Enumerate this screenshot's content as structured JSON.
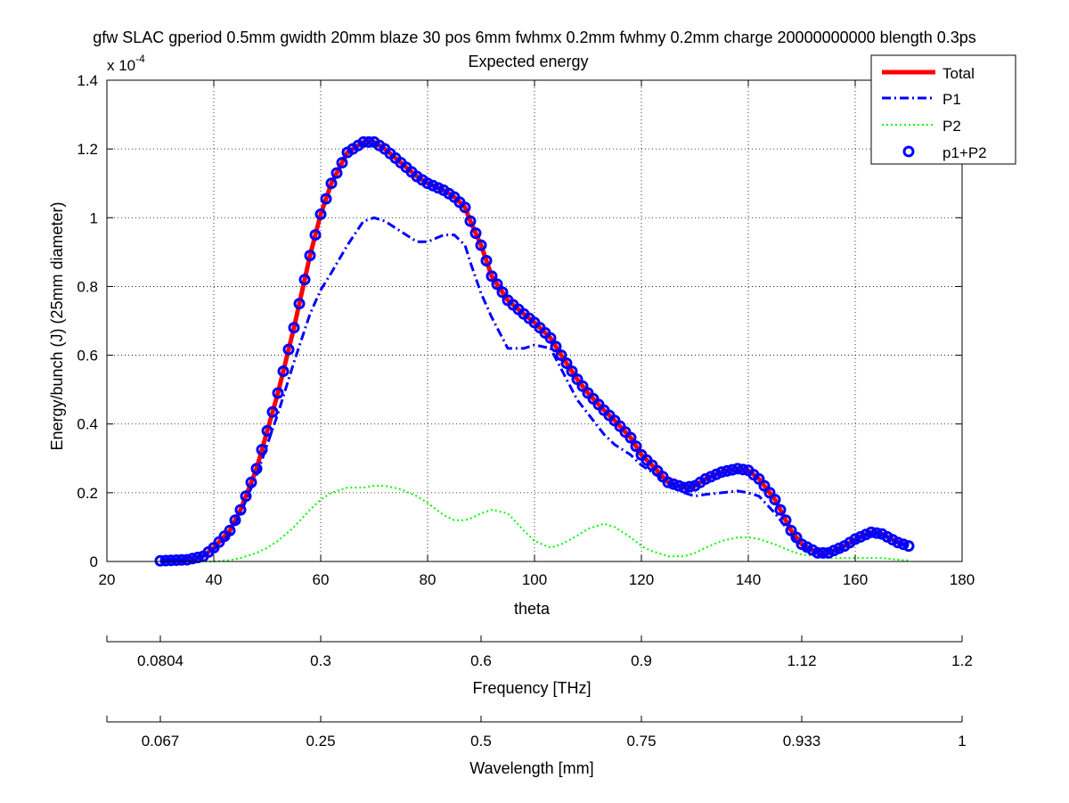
{
  "chart_data": {
    "type": "line",
    "title": "gfw SLAC gperiod 0.5mm gwidth 20mm blaze 30 pos 6mm fwhmx 0.2mm fwhmy 0.2mm charge 20000000000 blength 0.3ps",
    "subtitle": "Expected energy",
    "xlabel": "theta",
    "ylabel": "Energy/bunch (J)  (25mm diameter)",
    "y_exponent_label": "x 10",
    "y_exponent": "-4",
    "xlim": [
      20,
      180
    ],
    "ylim": [
      0,
      1.4
    ],
    "xticks": [
      20,
      40,
      60,
      80,
      100,
      120,
      140,
      160,
      180
    ],
    "xtick_labels": [
      "20",
      "40",
      "60",
      "80",
      "100",
      "120",
      "140",
      "160",
      "180"
    ],
    "yticks": [
      0,
      0.2,
      0.4,
      0.6,
      0.8,
      1,
      1.2,
      1.4
    ],
    "ytick_labels": [
      "0",
      "0.2",
      "0.4",
      "0.6",
      "0.8",
      "1",
      "1.2",
      "1.4"
    ],
    "grid": true,
    "legend_position": "top-right",
    "colors": {
      "total": "#ff0000",
      "p1": "#0000ff",
      "p2": "#00ff00",
      "markers": "#0000ff"
    },
    "series": [
      {
        "name": "Total",
        "style": "solid",
        "color": "#ff0000",
        "x": [
          30,
          35,
          38,
          40,
          43,
          45,
          48,
          50,
          52,
          55,
          58,
          60,
          62,
          65,
          68,
          70,
          72,
          75,
          78,
          80,
          83,
          85,
          87,
          88,
          90,
          92,
          95,
          98,
          100,
          103,
          105,
          108,
          110,
          113,
          115,
          118,
          120,
          122,
          125,
          128,
          130,
          132,
          135,
          138,
          140,
          142,
          145,
          148,
          150,
          153,
          155,
          158,
          160,
          163,
          165,
          168,
          170
        ],
        "y": [
          0.002,
          0.005,
          0.015,
          0.04,
          0.09,
          0.15,
          0.27,
          0.38,
          0.49,
          0.68,
          0.89,
          1.01,
          1.1,
          1.19,
          1.22,
          1.22,
          1.2,
          1.16,
          1.12,
          1.1,
          1.08,
          1.06,
          1.03,
          0.99,
          0.92,
          0.83,
          0.76,
          0.72,
          0.695,
          0.65,
          0.6,
          0.53,
          0.49,
          0.44,
          0.41,
          0.36,
          0.31,
          0.28,
          0.23,
          0.215,
          0.22,
          0.24,
          0.26,
          0.27,
          0.265,
          0.24,
          0.18,
          0.09,
          0.05,
          0.025,
          0.025,
          0.045,
          0.065,
          0.085,
          0.08,
          0.055,
          0.045
        ]
      },
      {
        "name": "P1",
        "style": "dashdot",
        "color": "#0000ff",
        "x": [
          30,
          35,
          38,
          40,
          43,
          45,
          48,
          50,
          52,
          55,
          58,
          60,
          62,
          65,
          68,
          70,
          72,
          75,
          78,
          80,
          83,
          85,
          87,
          88,
          90,
          92,
          95,
          98,
          100,
          103,
          105,
          108,
          110,
          113,
          115,
          118,
          120,
          122,
          125,
          128,
          130,
          132,
          135,
          138,
          140,
          142,
          145,
          148,
          150,
          153,
          155,
          158,
          160,
          163,
          165,
          168,
          170
        ],
        "y": [
          0.002,
          0.005,
          0.015,
          0.035,
          0.08,
          0.14,
          0.25,
          0.34,
          0.43,
          0.58,
          0.72,
          0.79,
          0.84,
          0.92,
          0.99,
          1.0,
          0.99,
          0.96,
          0.93,
          0.93,
          0.95,
          0.95,
          0.92,
          0.87,
          0.78,
          0.71,
          0.62,
          0.62,
          0.63,
          0.62,
          0.56,
          0.47,
          0.43,
          0.37,
          0.34,
          0.31,
          0.28,
          0.26,
          0.23,
          0.2,
          0.19,
          0.195,
          0.2,
          0.205,
          0.2,
          0.19,
          0.14,
          0.08,
          0.04,
          0.02,
          0.02,
          0.04,
          0.06,
          0.08,
          0.08,
          0.055,
          0.045
        ]
      },
      {
        "name": "P2",
        "style": "dotted",
        "color": "#00ff00",
        "x": [
          30,
          35,
          38,
          40,
          43,
          45,
          48,
          50,
          52,
          55,
          58,
          60,
          62,
          65,
          68,
          70,
          72,
          75,
          78,
          80,
          83,
          85,
          87,
          88,
          90,
          92,
          95,
          98,
          100,
          103,
          105,
          108,
          110,
          113,
          115,
          118,
          120,
          122,
          125,
          128,
          130,
          132,
          135,
          138,
          140,
          142,
          145,
          148,
          150,
          153,
          155,
          158,
          160,
          163,
          165,
          168,
          170
        ],
        "y": [
          0,
          0,
          0,
          0,
          0.004,
          0.01,
          0.025,
          0.04,
          0.06,
          0.1,
          0.15,
          0.18,
          0.2,
          0.215,
          0.215,
          0.22,
          0.22,
          0.21,
          0.19,
          0.17,
          0.135,
          0.12,
          0.12,
          0.125,
          0.14,
          0.15,
          0.14,
          0.09,
          0.06,
          0.04,
          0.05,
          0.075,
          0.095,
          0.11,
          0.1,
          0.07,
          0.045,
          0.03,
          0.015,
          0.015,
          0.025,
          0.04,
          0.06,
          0.07,
          0.07,
          0.065,
          0.05,
          0.03,
          0.02,
          0.015,
          0.01,
          0.01,
          0.01,
          0.01,
          0.01,
          0.005,
          0.003
        ]
      },
      {
        "name": "p1+P2",
        "style": "markers",
        "color": "#0000ff",
        "x": [
          30,
          35,
          38,
          40,
          43,
          45,
          48,
          50,
          52,
          55,
          58,
          60,
          62,
          65,
          68,
          70,
          72,
          75,
          78,
          80,
          83,
          85,
          87,
          88,
          90,
          92,
          95,
          98,
          100,
          103,
          105,
          108,
          110,
          113,
          115,
          118,
          120,
          122,
          125,
          128,
          130,
          132,
          135,
          138,
          140,
          142,
          145,
          148,
          150,
          153,
          155,
          158,
          160,
          163,
          165,
          168,
          170
        ],
        "y": [
          0.002,
          0.005,
          0.015,
          0.04,
          0.09,
          0.15,
          0.27,
          0.38,
          0.49,
          0.68,
          0.89,
          1.01,
          1.1,
          1.19,
          1.22,
          1.22,
          1.2,
          1.16,
          1.12,
          1.1,
          1.08,
          1.06,
          1.03,
          0.99,
          0.92,
          0.83,
          0.76,
          0.72,
          0.695,
          0.65,
          0.6,
          0.53,
          0.49,
          0.44,
          0.41,
          0.36,
          0.31,
          0.28,
          0.23,
          0.215,
          0.22,
          0.24,
          0.26,
          0.27,
          0.265,
          0.24,
          0.18,
          0.09,
          0.05,
          0.025,
          0.025,
          0.045,
          0.065,
          0.085,
          0.08,
          0.055,
          0.045
        ]
      }
    ],
    "secondary_axes": [
      {
        "label": "Frequency [THz]",
        "tick_labels": [
          "0.0804",
          "0.3",
          "0.6",
          "0.9",
          "1.12",
          "1.2"
        ]
      },
      {
        "label": "Wavelength [mm]",
        "tick_labels": [
          "0.067",
          "0.25",
          "0.5",
          "0.75",
          "0.933",
          "1"
        ]
      }
    ]
  }
}
